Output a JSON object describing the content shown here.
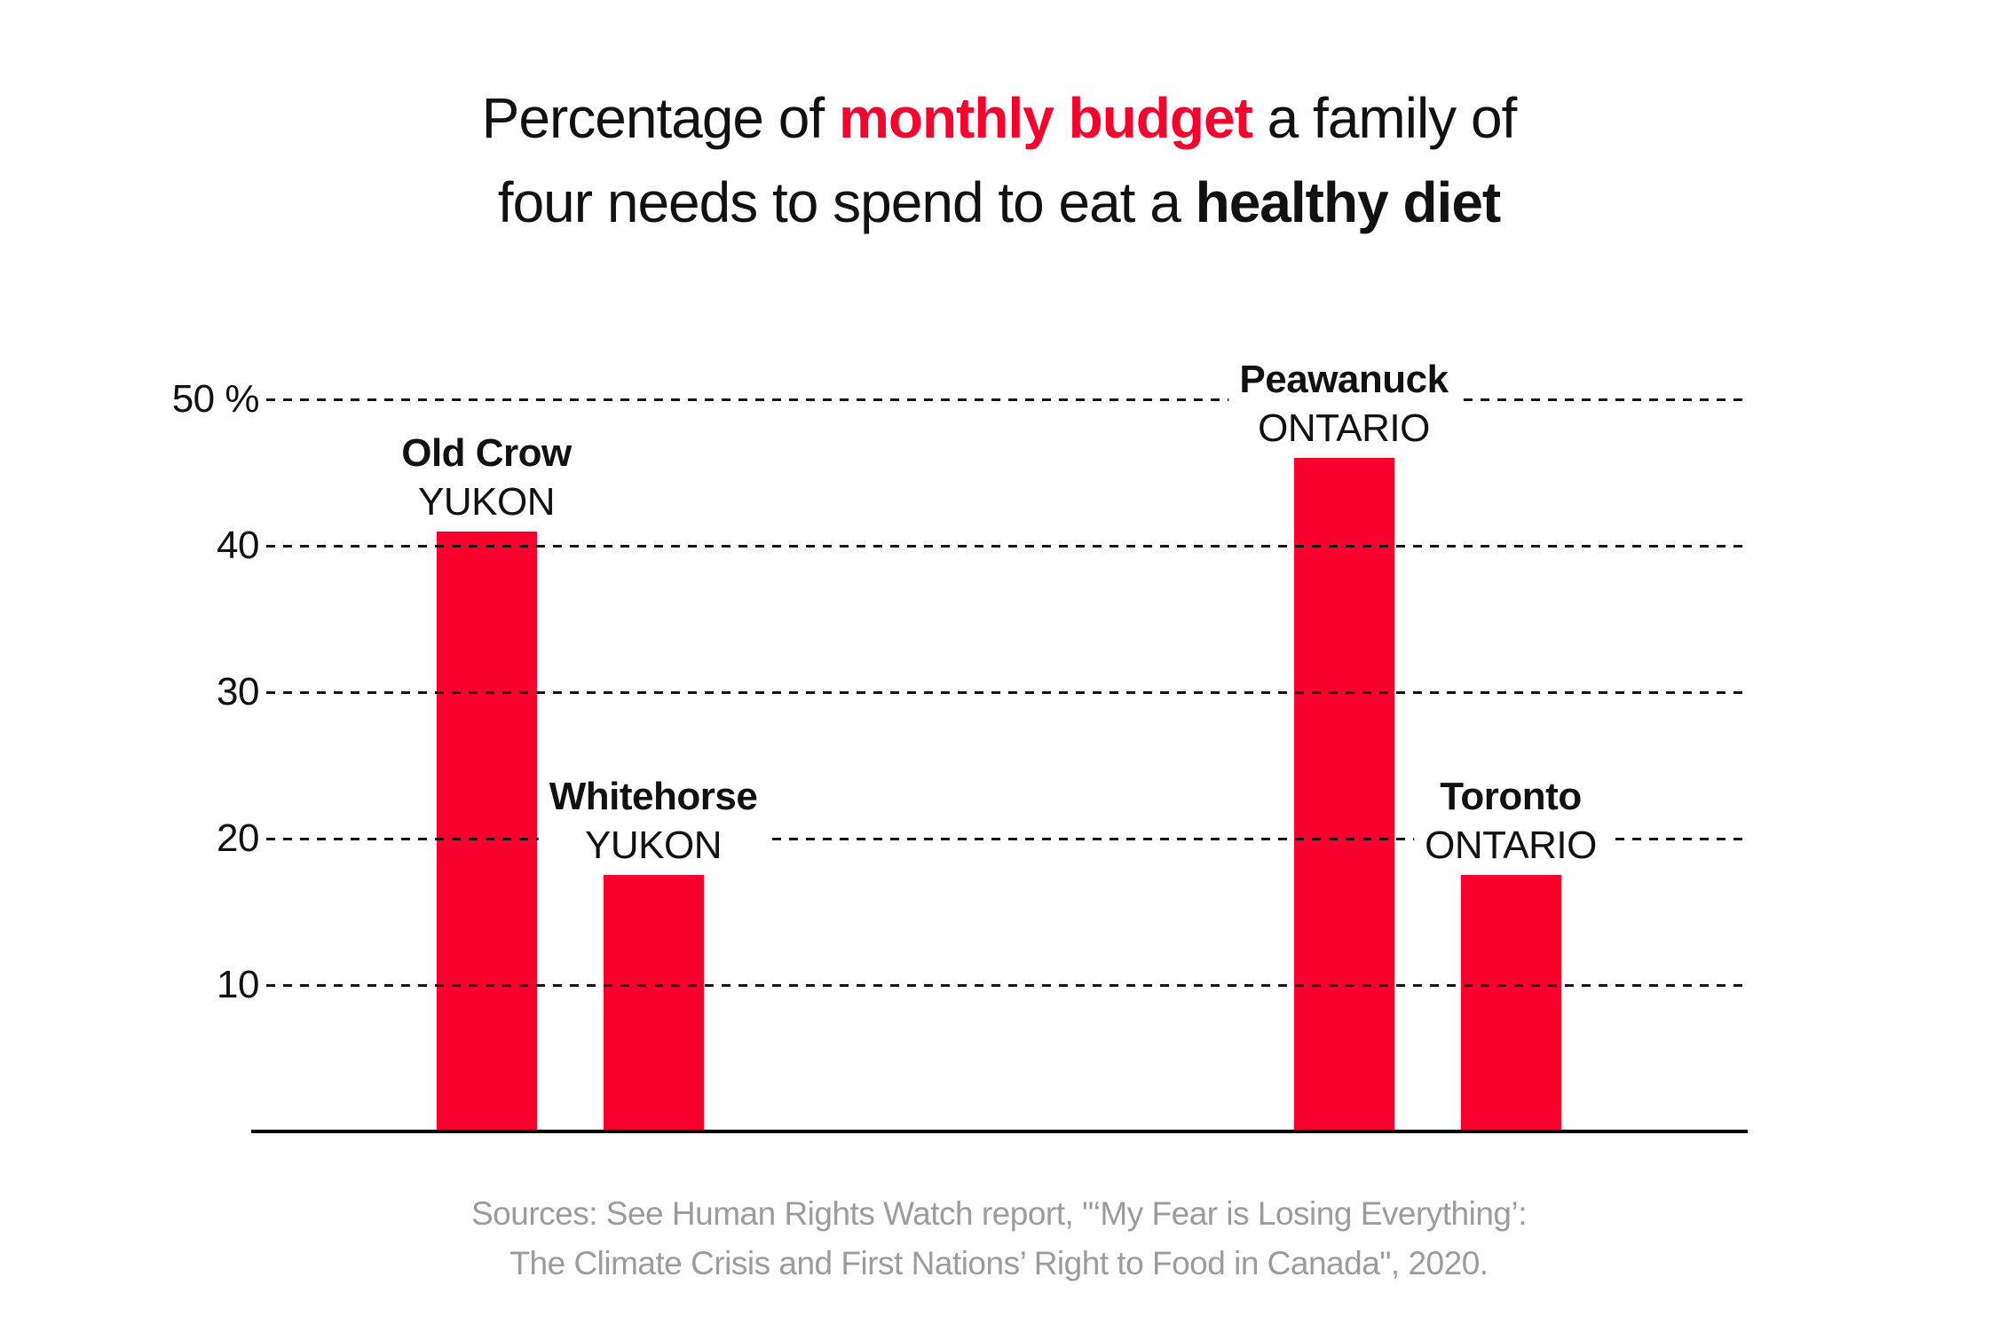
{
  "page": {
    "background": "#ffffff"
  },
  "title": {
    "line1": [
      {
        "text": "Percentage of "
      },
      {
        "text": "monthly budget",
        "bold": true,
        "red": true
      },
      {
        "text": " a family of"
      }
    ],
    "line2": [
      {
        "text": "four needs to spend to eat a "
      },
      {
        "text": "healthy diet",
        "bold": true
      }
    ]
  },
  "chart_data": {
    "type": "bar",
    "title": "Percentage of monthly budget a family of four needs to spend to eat a healthy diet",
    "title_emphasis_red": "monthly budget",
    "title_emphasis_bold": "healthy diet",
    "categories": [
      "Old Crow",
      "Whitehorse",
      "Peawanuck",
      "Toronto"
    ],
    "category_regions": [
      "YUKON",
      "YUKON",
      "ONTARIO",
      "ONTARIO"
    ],
    "values": [
      41,
      17.5,
      46,
      17.5
    ],
    "unit": "%",
    "xlabel": "",
    "ylabel": "",
    "ylim": [
      0,
      50
    ],
    "yticks": [
      10,
      20,
      30,
      40,
      50
    ],
    "ytick_labels": [
      "10",
      "20",
      "30",
      "40",
      "50 %"
    ],
    "grid": "horizontal-dashed",
    "gridlines_over_bars": true,
    "legend": "none",
    "bar_color": "#f8012d"
  },
  "colors": {
    "accent_red": "#f8012d",
    "text_black": "#111111",
    "source_gray": "#9c9c9c",
    "axis_black": "#000000"
  },
  "source": {
    "line1": "Sources: See Human Rights Watch report, \"‘My Fear is Losing Everything’:",
    "line2": "The Climate Crisis and First Nations’ Right to Food in Canada\", 2020."
  }
}
